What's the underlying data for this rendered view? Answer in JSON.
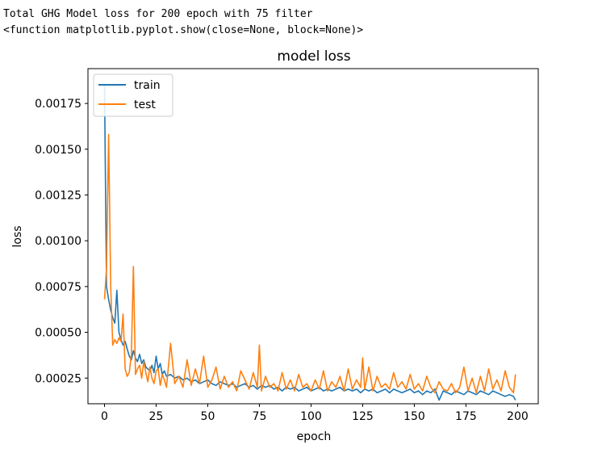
{
  "output": {
    "line1": "Total GHG Model loss for 200 epoch with 75 filter",
    "line2": "<function matplotlib.pyplot.show(close=None, block=None)>"
  },
  "chart_data": {
    "type": "line",
    "title": "model loss",
    "xlabel": "epoch",
    "ylabel": "loss",
    "xlim": [
      -8,
      210
    ],
    "ylim": [
      0.00011,
      0.00194
    ],
    "xticks": [
      0,
      25,
      50,
      75,
      100,
      125,
      150,
      175,
      200
    ],
    "xtick_labels": [
      "0",
      "25",
      "50",
      "75",
      "100",
      "125",
      "150",
      "175",
      "200"
    ],
    "yticks": [
      0.00025,
      0.0005,
      0.00075,
      0.001,
      0.00125,
      0.0015,
      0.00175
    ],
    "ytick_labels": [
      "0.00025",
      "0.00050",
      "0.00075",
      "0.00100",
      "0.00125",
      "0.00150",
      "0.00175"
    ],
    "legend_position": "upper left",
    "grid": false,
    "series": [
      {
        "name": "train",
        "color": "#1f77b4",
        "x": [
          0,
          1,
          2,
          3,
          4,
          5,
          6,
          7,
          8,
          9,
          10,
          11,
          12,
          13,
          14,
          15,
          16,
          17,
          18,
          19,
          20,
          21,
          22,
          23,
          24,
          25,
          26,
          27,
          28,
          29,
          30,
          32,
          34,
          36,
          38,
          40,
          42,
          44,
          46,
          48,
          50,
          52,
          54,
          56,
          58,
          60,
          62,
          64,
          66,
          68,
          70,
          72,
          74,
          76,
          78,
          80,
          82,
          84,
          86,
          88,
          90,
          92,
          94,
          96,
          98,
          100,
          102,
          104,
          106,
          108,
          110,
          112,
          114,
          116,
          118,
          120,
          122,
          124,
          126,
          128,
          130,
          132,
          134,
          136,
          138,
          140,
          142,
          144,
          146,
          148,
          150,
          152,
          154,
          156,
          158,
          160,
          162,
          164,
          166,
          168,
          170,
          172,
          174,
          176,
          178,
          180,
          182,
          184,
          186,
          188,
          190,
          192,
          194,
          196,
          198,
          199
        ],
        "y": [
          0.00185,
          0.00075,
          0.00068,
          0.00062,
          0.00058,
          0.00055,
          0.00073,
          0.0005,
          0.00046,
          0.00043,
          0.00045,
          0.00041,
          0.00037,
          0.00035,
          0.0004,
          0.00036,
          0.00034,
          0.00038,
          0.00033,
          0.00035,
          0.00031,
          0.0003,
          0.00029,
          0.00032,
          0.00028,
          0.00037,
          0.0003,
          0.00033,
          0.00027,
          0.00029,
          0.00026,
          0.00027,
          0.00025,
          0.00026,
          0.00024,
          0.00025,
          0.00023,
          0.00024,
          0.00022,
          0.00023,
          0.00024,
          0.00022,
          0.00021,
          0.00023,
          0.00022,
          0.00021,
          0.00022,
          0.0002,
          0.00021,
          0.00022,
          0.0002,
          0.00021,
          0.00019,
          0.00021,
          0.0002,
          0.00021,
          0.00019,
          0.0002,
          0.00018,
          0.0002,
          0.00019,
          0.0002,
          0.00018,
          0.00019,
          0.0002,
          0.00018,
          0.00019,
          0.0002,
          0.00018,
          0.00019,
          0.00018,
          0.00019,
          0.0002,
          0.00018,
          0.00019,
          0.00018,
          0.00019,
          0.00017,
          0.00019,
          0.00018,
          0.00019,
          0.00017,
          0.00018,
          0.00019,
          0.00017,
          0.00019,
          0.00018,
          0.00017,
          0.00018,
          0.00019,
          0.00017,
          0.00018,
          0.00016,
          0.00018,
          0.00017,
          0.00019,
          0.00013,
          0.00018,
          0.00017,
          0.00016,
          0.00018,
          0.00017,
          0.00016,
          0.00018,
          0.00017,
          0.00016,
          0.00018,
          0.00017,
          0.00016,
          0.00018,
          0.00017,
          0.00016,
          0.00015,
          0.00016,
          0.00015,
          0.00013
        ]
      },
      {
        "name": "test",
        "color": "#ff7f0e",
        "x": [
          0,
          1,
          2,
          3,
          4,
          5,
          6,
          7,
          8,
          9,
          10,
          11,
          12,
          13,
          14,
          15,
          16,
          17,
          18,
          19,
          20,
          21,
          22,
          23,
          24,
          25,
          26,
          27,
          28,
          29,
          30,
          32,
          34,
          36,
          38,
          40,
          42,
          44,
          46,
          48,
          50,
          52,
          54,
          56,
          58,
          60,
          62,
          64,
          66,
          68,
          70,
          72,
          74,
          75,
          76,
          78,
          80,
          82,
          84,
          86,
          88,
          90,
          92,
          94,
          96,
          98,
          100,
          102,
          104,
          106,
          108,
          110,
          112,
          114,
          116,
          118,
          120,
          122,
          124,
          125,
          126,
          128,
          130,
          132,
          134,
          136,
          138,
          140,
          142,
          144,
          146,
          148,
          150,
          152,
          154,
          156,
          158,
          160,
          162,
          164,
          166,
          168,
          170,
          172,
          174,
          176,
          178,
          180,
          182,
          184,
          186,
          188,
          190,
          192,
          194,
          196,
          198,
          199
        ],
        "y": [
          0.00068,
          0.00085,
          0.00158,
          0.00075,
          0.00043,
          0.00046,
          0.00044,
          0.00047,
          0.00045,
          0.0006,
          0.0003,
          0.00026,
          0.00028,
          0.00038,
          0.00086,
          0.00027,
          0.0003,
          0.00032,
          0.00025,
          0.00034,
          0.00028,
          0.00023,
          0.00031,
          0.00025,
          0.00022,
          0.00029,
          0.0003,
          0.00021,
          0.00027,
          0.00024,
          0.0002,
          0.00044,
          0.00022,
          0.00026,
          0.0002,
          0.00035,
          0.00021,
          0.0003,
          0.00022,
          0.00037,
          0.0002,
          0.00024,
          0.00031,
          0.00019,
          0.00026,
          0.0002,
          0.00023,
          0.00018,
          0.00029,
          0.00024,
          0.00019,
          0.00028,
          0.0002,
          0.00043,
          0.00018,
          0.00026,
          0.0002,
          0.00022,
          0.00018,
          0.00028,
          0.00019,
          0.00024,
          0.00018,
          0.00027,
          0.0002,
          0.00022,
          0.00018,
          0.00024,
          0.00019,
          0.00029,
          0.00018,
          0.00023,
          0.0002,
          0.00026,
          0.00018,
          0.0003,
          0.00019,
          0.00024,
          0.0002,
          0.00036,
          0.00019,
          0.00031,
          0.00018,
          0.00026,
          0.0002,
          0.00022,
          0.00019,
          0.00028,
          0.0002,
          0.00023,
          0.00019,
          0.00027,
          0.00019,
          0.00022,
          0.00018,
          0.00026,
          0.0002,
          0.00017,
          0.00023,
          0.00019,
          0.00018,
          0.00022,
          0.00017,
          0.0002,
          0.00031,
          0.00018,
          0.00025,
          0.00017,
          0.00026,
          0.00018,
          0.0003,
          0.00019,
          0.00024,
          0.00018,
          0.00029,
          0.0002,
          0.00017,
          0.00027
        ]
      }
    ]
  }
}
